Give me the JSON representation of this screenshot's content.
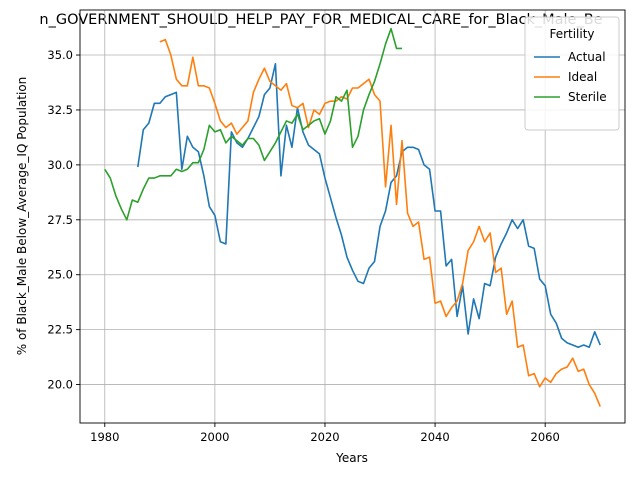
{
  "chart_data": {
    "type": "line",
    "title": "n_GOVERNMENT_SHOULD_HELP_PAY_FOR_MEDICAL_CARE_for_Black_Male_Be",
    "xlabel": "Years",
    "ylabel": "% of Black_Male Below_Average_IQ Population",
    "xlim": [
      1975.5,
      2074.5
    ],
    "ylim": [
      18.25,
      37.05
    ],
    "x_ticks": [
      1980,
      2000,
      2020,
      2040,
      2060
    ],
    "y_ticks": [
      20.0,
      22.5,
      25.0,
      27.5,
      30.0,
      32.5,
      35.0
    ],
    "x_tick_labels": [
      "1980",
      "2000",
      "2020",
      "2040",
      "2060"
    ],
    "y_tick_labels": [
      "20.0",
      "22.5",
      "25.0",
      "27.5",
      "30.0",
      "32.5",
      "35.0"
    ],
    "grid": true,
    "legend": {
      "title": "Fertility",
      "position": "top-right"
    },
    "series": [
      {
        "name": "Actual",
        "color": "#1f77b4",
        "x": [
          1986,
          1987,
          1988,
          1989,
          1990,
          1991,
          1992,
          1993,
          1994,
          1995,
          1996,
          1997,
          1998,
          1999,
          2000,
          2001,
          2002,
          2003,
          2004,
          2005,
          2006,
          2007,
          2008,
          2009,
          2010,
          2011,
          2012,
          2013,
          2014,
          2015,
          2016,
          2017,
          2018,
          2019,
          2020,
          2021,
          2022,
          2023,
          2024,
          2025,
          2026,
          2027,
          2028,
          2029,
          2030,
          2031,
          2032,
          2033,
          2034,
          2035,
          2036,
          2037,
          2038,
          2039,
          2040,
          2041,
          2042,
          2043,
          2044,
          2045,
          2046,
          2047,
          2048,
          2049,
          2050,
          2051,
          2052,
          2053,
          2054,
          2055,
          2056,
          2057,
          2058,
          2059,
          2060,
          2061,
          2062,
          2063,
          2064,
          2065,
          2066,
          2067,
          2068,
          2069,
          2070
        ],
        "values": [
          29.9,
          31.6,
          31.9,
          32.8,
          32.8,
          33.1,
          33.2,
          33.3,
          29.8,
          31.3,
          30.8,
          30.6,
          29.5,
          28.1,
          27.7,
          26.5,
          26.4,
          31.5,
          31.0,
          30.8,
          31.2,
          31.7,
          32.2,
          33.2,
          33.5,
          34.6,
          29.5,
          31.8,
          30.8,
          32.6,
          31.5,
          30.9,
          30.7,
          30.5,
          29.4,
          28.5,
          27.6,
          26.8,
          25.8,
          25.2,
          24.7,
          24.6,
          25.3,
          25.6,
          27.2,
          27.9,
          29.2,
          29.5,
          30.6,
          30.8,
          30.8,
          30.7,
          30.0,
          29.8,
          27.9,
          27.9,
          25.4,
          25.7,
          23.1,
          24.5,
          22.3,
          23.9,
          23.0,
          24.6,
          24.5,
          25.8,
          26.4,
          26.9,
          27.5,
          27.1,
          27.5,
          26.3,
          26.2,
          24.8,
          24.5,
          23.2,
          22.8,
          22.1,
          21.9,
          21.8,
          21.7,
          21.8,
          21.7,
          22.4,
          21.8
        ]
      },
      {
        "name": "Ideal",
        "color": "#ff7f0e",
        "x": [
          1990,
          1991,
          1992,
          1993,
          1994,
          1995,
          1996,
          1997,
          1998,
          1999,
          2000,
          2001,
          2002,
          2003,
          2004,
          2005,
          2006,
          2007,
          2008,
          2009,
          2010,
          2011,
          2012,
          2013,
          2014,
          2015,
          2016,
          2017,
          2018,
          2019,
          2020,
          2021,
          2022,
          2023,
          2024,
          2025,
          2026,
          2027,
          2028,
          2029,
          2030,
          2031,
          2032,
          2033,
          2034,
          2035,
          2036,
          2037,
          2038,
          2039,
          2040,
          2041,
          2042,
          2043,
          2044,
          2045,
          2046,
          2047,
          2048,
          2049,
          2050,
          2051,
          2052,
          2053,
          2054,
          2055,
          2056,
          2057,
          2058,
          2059,
          2060,
          2061,
          2062,
          2063,
          2064,
          2065,
          2066,
          2067,
          2068,
          2069,
          2070
        ],
        "values": [
          35.6,
          35.7,
          35.0,
          33.9,
          33.6,
          33.6,
          34.9,
          33.6,
          33.6,
          33.5,
          32.8,
          32.0,
          31.7,
          31.9,
          31.4,
          31.7,
          32.0,
          33.3,
          33.9,
          34.4,
          33.8,
          33.6,
          33.4,
          33.7,
          32.7,
          32.6,
          32.8,
          31.7,
          32.5,
          32.3,
          32.8,
          32.9,
          32.9,
          33.1,
          33.0,
          33.5,
          33.5,
          33.7,
          33.9,
          33.2,
          32.9,
          29.0,
          31.8,
          28.2,
          31.1,
          27.8,
          27.2,
          27.4,
          25.7,
          25.8,
          23.7,
          23.8,
          23.1,
          23.5,
          23.8,
          24.6,
          26.1,
          26.5,
          27.2,
          26.5,
          26.9,
          25.1,
          25.3,
          23.2,
          23.8,
          21.7,
          21.8,
          20.4,
          20.5,
          19.9,
          20.3,
          20.1,
          20.5,
          20.7,
          20.8,
          21.2,
          20.6,
          20.7,
          20.0,
          19.6,
          19.0
        ]
      },
      {
        "name": "Sterile",
        "color": "#2ca02c",
        "x": [
          1980,
          1981,
          1982,
          1983,
          1984,
          1985,
          1986,
          1987,
          1988,
          1989,
          1990,
          1991,
          1992,
          1993,
          1994,
          1995,
          1996,
          1997,
          1998,
          1999,
          2000,
          2001,
          2002,
          2003,
          2004,
          2005,
          2006,
          2007,
          2008,
          2009,
          2010,
          2011,
          2012,
          2013,
          2014,
          2015,
          2016,
          2017,
          2018,
          2019,
          2020,
          2021,
          2022,
          2023,
          2024,
          2025,
          2026,
          2027,
          2028,
          2029,
          2030,
          2031,
          2032,
          2033,
          2034
        ],
        "values": [
          29.8,
          29.4,
          28.6,
          28.0,
          27.5,
          28.4,
          28.3,
          28.9,
          29.4,
          29.4,
          29.5,
          29.5,
          29.5,
          29.8,
          29.7,
          29.8,
          30.1,
          30.1,
          30.7,
          31.8,
          31.5,
          31.6,
          31.0,
          31.3,
          31.1,
          30.9,
          31.2,
          31.2,
          30.9,
          30.2,
          30.6,
          31.0,
          31.5,
          32.0,
          31.9,
          32.3,
          31.6,
          31.8,
          32.0,
          32.1,
          31.4,
          32.0,
          33.1,
          32.9,
          33.4,
          30.8,
          31.3,
          32.5,
          33.2,
          33.8,
          34.6,
          35.5,
          36.2,
          35.3,
          35.3
        ]
      }
    ]
  }
}
